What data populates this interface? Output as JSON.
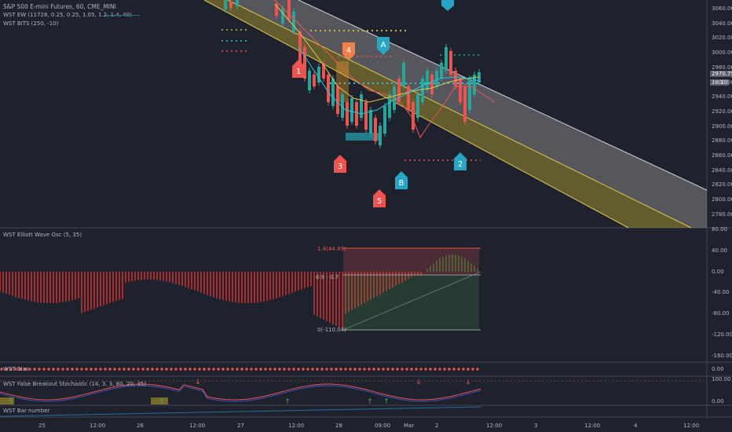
{
  "header": {
    "title": "S&P 500 E-mini Futures, 60, CME_MINI",
    "ind1": "WST EW (11728, 0.25, 0.25, 1.05, 1.2, 1.4, 40)",
    "ind2": "WST BITS (250, -10)"
  },
  "price_axis": {
    "ticks": [
      "3060.00",
      "3040.00",
      "3020.00",
      "3000.00",
      "2980.00",
      "2960.00",
      "2940.00",
      "2920.00",
      "2900.00",
      "2880.00",
      "2860.00",
      "2840.00",
      "2820.00",
      "2800.00",
      "2780.00"
    ],
    "last_price": "2970.75",
    "countdown": "18:10"
  },
  "waves": [
    "1",
    "2",
    "3",
    "4",
    "5",
    "A",
    "B"
  ],
  "osc": {
    "title": "WST Elliott Wave Osc (5, 35)",
    "ticks": [
      "80.00",
      "40.00",
      "0.00",
      "-40.00",
      "-80.00",
      "-120.00",
      "-160.00"
    ],
    "fib_top": "1.4(44.49)",
    "fib_mid": "0.9 - 0.7",
    "fib_bot": "0(-110.04)"
  },
  "bias": {
    "title": "WST Bias",
    "tick": "0.00"
  },
  "stoch": {
    "title": "WST False Breakout Stochastic (14, 3, 3, 80, 20, 35)",
    "ticks": [
      "100.00",
      "0.00"
    ]
  },
  "barnum": {
    "title": "WST Bar number"
  },
  "time_axis": [
    "25",
    "12:00",
    "26",
    "12:00",
    "27",
    "12:00",
    "28",
    "09:00",
    "Mar",
    "2",
    "12:00",
    "3",
    "12:00",
    "4",
    "12:00"
  ],
  "colors": {
    "bg": "#1e222d",
    "bull": "#26a69a",
    "bear": "#ef5350",
    "channel": "#c9b642",
    "accent": "#2a6e9e"
  }
}
